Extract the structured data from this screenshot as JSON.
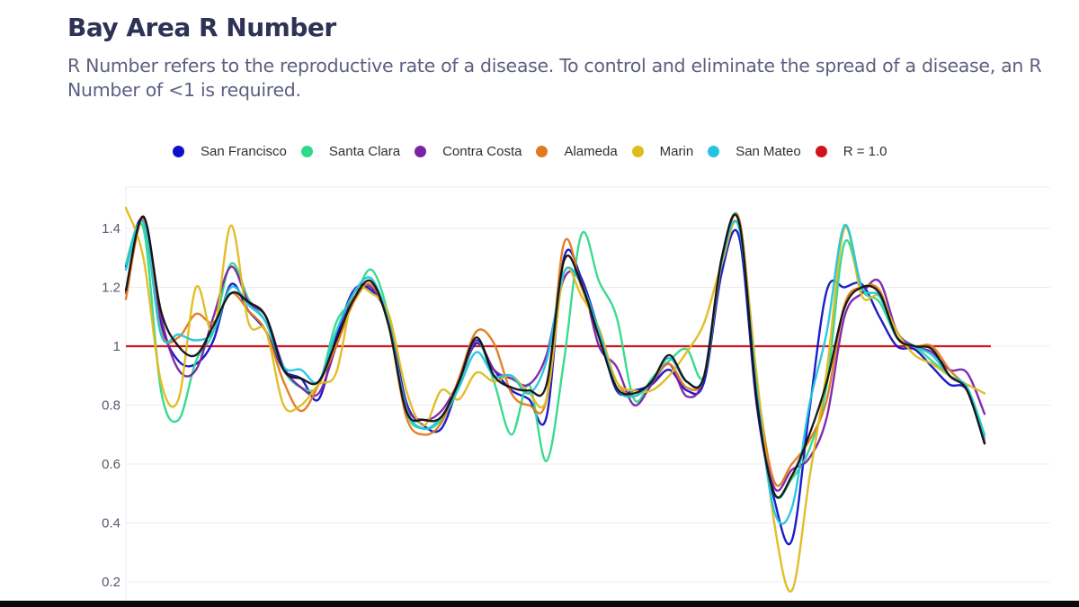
{
  "header": {
    "title": "Bay Area R Number",
    "subtitle": "R Number refers to the reproductive rate of a disease. To control and eliminate the spread of a disease, an R Number of <1 is required."
  },
  "chart_data": {
    "type": "line",
    "title": "Bay Area R Number",
    "xlabel": "",
    "ylabel": "",
    "ylim": [
      0.15,
      1.54
    ],
    "yticks": [
      0.2,
      0.4,
      0.6,
      0.8,
      1,
      1.2,
      1.4
    ],
    "ytick_labels": [
      "0.2",
      "0.4",
      "0.6",
      "0.8",
      "1",
      "1.2",
      "1.4"
    ],
    "grid": true,
    "legend_position": "top",
    "x": [
      0,
      1,
      2,
      3,
      4,
      5,
      6,
      7,
      8,
      9,
      10,
      11,
      12,
      13,
      14,
      15,
      16,
      17,
      18,
      19,
      20,
      21,
      22,
      23,
      24,
      25,
      26,
      27,
      28,
      29,
      30,
      31,
      32,
      33,
      34,
      35,
      36,
      37,
      38,
      39,
      40,
      41,
      42,
      43,
      44,
      45,
      46,
      47,
      48,
      49
    ],
    "reference_line": {
      "name": "R = 1.0",
      "value": 1.0,
      "color": "#d0141c",
      "x_range": [
        0,
        49
      ]
    },
    "series": [
      {
        "name": "San Francisco",
        "color": "#1010c8",
        "in_legend": true,
        "values": [
          1.27,
          1.43,
          1.08,
          0.95,
          0.94,
          1.02,
          1.21,
          1.12,
          1.05,
          0.92,
          0.89,
          0.82,
          1.03,
          1.19,
          1.19,
          1.09,
          0.81,
          0.73,
          0.72,
          0.87,
          1.01,
          0.92,
          0.85,
          0.82,
          0.76,
          1.3,
          1.23,
          1.05,
          0.85,
          0.85,
          0.87,
          0.92,
          0.85,
          0.88,
          1.25,
          1.37,
          0.8,
          0.48,
          0.34,
          0.78,
          1.19,
          1.2,
          1.21,
          1.1,
          1.0,
          0.99,
          0.93,
          0.87,
          0.85,
          0.67
        ]
      },
      {
        "name": "Santa Clara",
        "color": "#2fd98a",
        "in_legend": true,
        "values": [
          1.28,
          1.4,
          0.85,
          0.75,
          0.95,
          1.05,
          1.28,
          1.16,
          1.08,
          0.92,
          0.86,
          0.87,
          1.08,
          1.16,
          1.26,
          1.1,
          0.78,
          0.72,
          0.75,
          0.86,
          1.02,
          0.88,
          0.7,
          0.87,
          0.61,
          0.95,
          1.38,
          1.22,
          1.1,
          0.82,
          0.89,
          0.95,
          0.99,
          0.9,
          1.29,
          1.43,
          0.84,
          0.5,
          0.55,
          0.65,
          0.87,
          1.35,
          1.19,
          1.15,
          1.03,
          1.0,
          0.95,
          0.9,
          0.86,
          0.7
        ]
      },
      {
        "name": "Contra Costa",
        "color": "#7a22a8",
        "in_legend": true,
        "values": [
          1.18,
          1.44,
          1.1,
          0.92,
          0.92,
          1.1,
          1.27,
          1.15,
          1.1,
          0.93,
          0.86,
          0.84,
          1.0,
          1.18,
          1.2,
          1.08,
          0.8,
          0.75,
          0.78,
          0.88,
          1.02,
          0.92,
          0.89,
          0.87,
          0.97,
          1.23,
          1.22,
          1.0,
          0.93,
          0.8,
          0.87,
          0.94,
          0.83,
          0.9,
          1.3,
          1.42,
          0.82,
          0.52,
          0.58,
          0.62,
          0.76,
          1.1,
          1.18,
          1.22,
          1.05,
          1.0,
          0.98,
          0.92,
          0.91,
          0.77
        ]
      },
      {
        "name": "Alameda",
        "color": "#e07a1a",
        "in_legend": true,
        "values": [
          1.16,
          1.43,
          1.05,
          1.03,
          1.11,
          1.08,
          1.18,
          1.12,
          1.05,
          0.88,
          0.78,
          0.87,
          1.0,
          1.15,
          1.21,
          1.07,
          0.76,
          0.7,
          0.74,
          0.89,
          1.05,
          1.01,
          0.84,
          0.8,
          0.82,
          1.35,
          1.2,
          1.05,
          0.88,
          0.83,
          0.88,
          0.94,
          0.86,
          0.9,
          1.28,
          1.43,
          0.88,
          0.54,
          0.6,
          0.68,
          0.82,
          1.14,
          1.2,
          1.19,
          1.03,
          1.0,
          1.0,
          0.92,
          0.85,
          0.68
        ]
      },
      {
        "name": "Marin",
        "color": "#e0bb1c",
        "in_legend": true,
        "values": [
          1.47,
          1.3,
          0.88,
          0.82,
          1.2,
          1.05,
          1.41,
          1.08,
          1.05,
          0.8,
          0.8,
          0.87,
          0.91,
          1.18,
          1.18,
          1.11,
          0.85,
          0.73,
          0.85,
          0.82,
          0.91,
          0.88,
          0.9,
          0.84,
          0.82,
          1.25,
          1.17,
          1.06,
          0.88,
          0.85,
          0.85,
          0.9,
          0.98,
          1.08,
          1.28,
          1.41,
          0.9,
          0.4,
          0.17,
          0.55,
          0.92,
          1.4,
          1.17,
          1.17,
          1.05,
          0.97,
          0.94,
          0.9,
          0.87,
          0.84
        ]
      },
      {
        "name": "San Mateo",
        "color": "#22c4e0",
        "in_legend": true,
        "values": [
          1.26,
          1.42,
          1.04,
          1.04,
          1.02,
          1.05,
          1.2,
          1.14,
          1.08,
          0.93,
          0.92,
          0.88,
          1.05,
          1.18,
          1.23,
          1.08,
          0.79,
          0.72,
          0.76,
          0.86,
          0.98,
          0.9,
          0.9,
          0.84,
          0.95,
          1.25,
          1.21,
          1.05,
          0.86,
          0.83,
          0.88,
          0.96,
          0.88,
          0.9,
          1.29,
          1.4,
          0.85,
          0.44,
          0.45,
          0.8,
          1.05,
          1.41,
          1.2,
          1.17,
          1.03,
          1.0,
          0.97,
          0.9,
          0.86,
          0.69
        ]
      },
      {
        "name": "Bay Area",
        "color": "#111111",
        "in_legend": false,
        "values": [
          1.19,
          1.44,
          1.12,
          1.0,
          0.97,
          1.07,
          1.18,
          1.15,
          1.1,
          0.92,
          0.89,
          0.88,
          1.02,
          1.16,
          1.22,
          1.07,
          0.78,
          0.75,
          0.76,
          0.88,
          1.03,
          0.9,
          0.86,
          0.85,
          0.87,
          1.29,
          1.21,
          1.03,
          0.86,
          0.84,
          0.88,
          0.97,
          0.88,
          0.9,
          1.3,
          1.42,
          0.82,
          0.5,
          0.56,
          0.7,
          0.88,
          1.13,
          1.2,
          1.18,
          1.03,
          1.0,
          0.99,
          0.9,
          0.85,
          0.67
        ]
      }
    ]
  }
}
